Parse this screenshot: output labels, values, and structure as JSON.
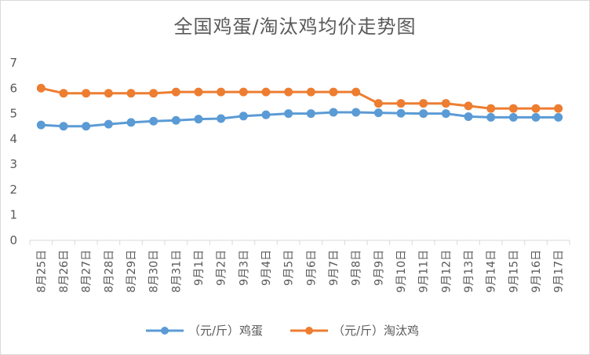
{
  "chart_data": {
    "type": "line",
    "title": "全国鸡蛋/淘汰鸡均价走势图",
    "categories": [
      "8月25日",
      "8月26日",
      "8月27日",
      "8月28日",
      "8月29日",
      "8月30日",
      "8月31日",
      "9月1日",
      "9月2日",
      "9月3日",
      "9月4日",
      "9月5日",
      "9月6日",
      "9月7日",
      "9月8日",
      "9月9日",
      "9月10日",
      "9月11日",
      "9月12日",
      "9月13日",
      "9月14日",
      "9月15日",
      "9月16日",
      "9月17日"
    ],
    "series": [
      {
        "name": "（元/斤）鸡蛋",
        "color": "#5b9bd5",
        "values": [
          4.55,
          4.5,
          4.5,
          4.58,
          4.65,
          4.7,
          4.73,
          4.78,
          4.8,
          4.9,
          4.95,
          5.0,
          5.0,
          5.05,
          5.05,
          5.03,
          5.01,
          5.0,
          5.0,
          4.88,
          4.85,
          4.85,
          4.85,
          4.85
        ]
      },
      {
        "name": "（元/斤）淘汰鸡",
        "color": "#ed7d31",
        "values": [
          6.0,
          5.8,
          5.8,
          5.8,
          5.8,
          5.8,
          5.85,
          5.85,
          5.85,
          5.85,
          5.85,
          5.85,
          5.85,
          5.85,
          5.85,
          5.4,
          5.4,
          5.4,
          5.4,
          5.3,
          5.2,
          5.2,
          5.2,
          5.2
        ]
      }
    ],
    "ylim": [
      0,
      7
    ],
    "yticks": [
      "0",
      "1",
      "2",
      "3",
      "4",
      "5",
      "6",
      "7"
    ],
    "xlabel": "",
    "ylabel": "",
    "legend": "bottom",
    "grid": false
  }
}
